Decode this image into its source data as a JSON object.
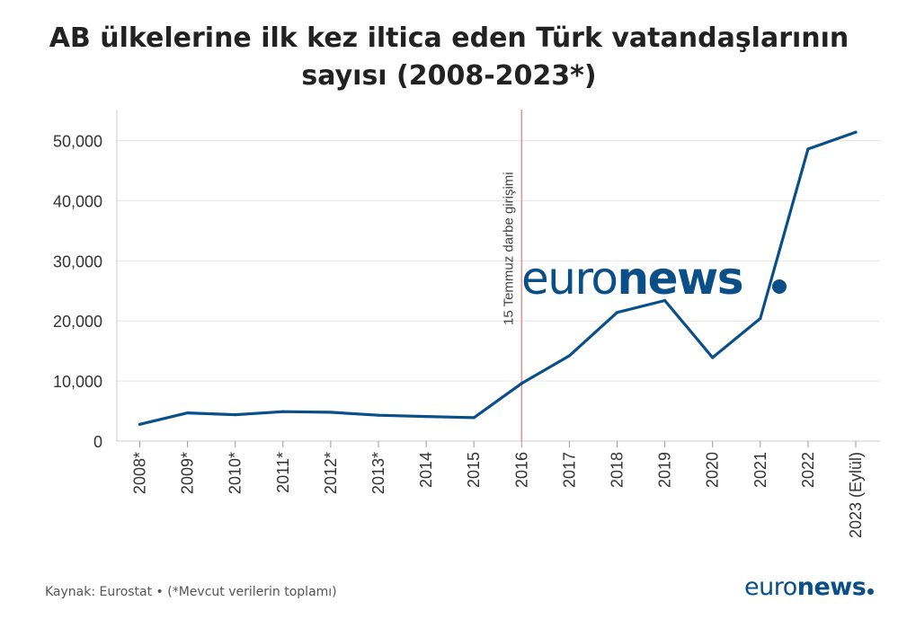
{
  "chart_data": {
    "type": "line",
    "title_line1": "AB ülkelerine ilk kez iltica eden Türk vatandaşlarının",
    "title_line2": "sayısı (2008-2023*)",
    "categories": [
      "2008*",
      "2009*",
      "2010*",
      "2011*",
      "2012*",
      "2013*",
      "2014",
      "2015",
      "2016",
      "2017",
      "2018",
      "2019",
      "2020",
      "2021",
      "2022",
      "2023 (Eylül)"
    ],
    "series": [
      {
        "values": [
          2800,
          4700,
          4400,
          4900,
          4800,
          4300,
          4100,
          3900,
          9600,
          14200,
          21400,
          23400,
          13900,
          20400,
          48600,
          51400
        ]
      }
    ],
    "y_ticks": [
      0,
      10000,
      20000,
      30000,
      40000,
      50000
    ],
    "y_tick_labels": [
      "0",
      "10,000",
      "20,000",
      "30,000",
      "40,000",
      "50,000"
    ],
    "ylim": [
      0,
      55000
    ],
    "grid": true,
    "annotation": {
      "label": "15 Temmuz darbe girişimi",
      "category": "2016"
    },
    "colors": {
      "line": "#0a4f88",
      "annotation": "#f28b8b",
      "grid": "#e6e6e6",
      "axis": "#cccccc"
    }
  },
  "watermark": {
    "light": "euro",
    "bold": "news"
  },
  "footer": {
    "source": "Kaynak: Eurostat • (*Mevcut verilerin toplamı)",
    "logo_light": "euro",
    "logo_bold": "news"
  }
}
